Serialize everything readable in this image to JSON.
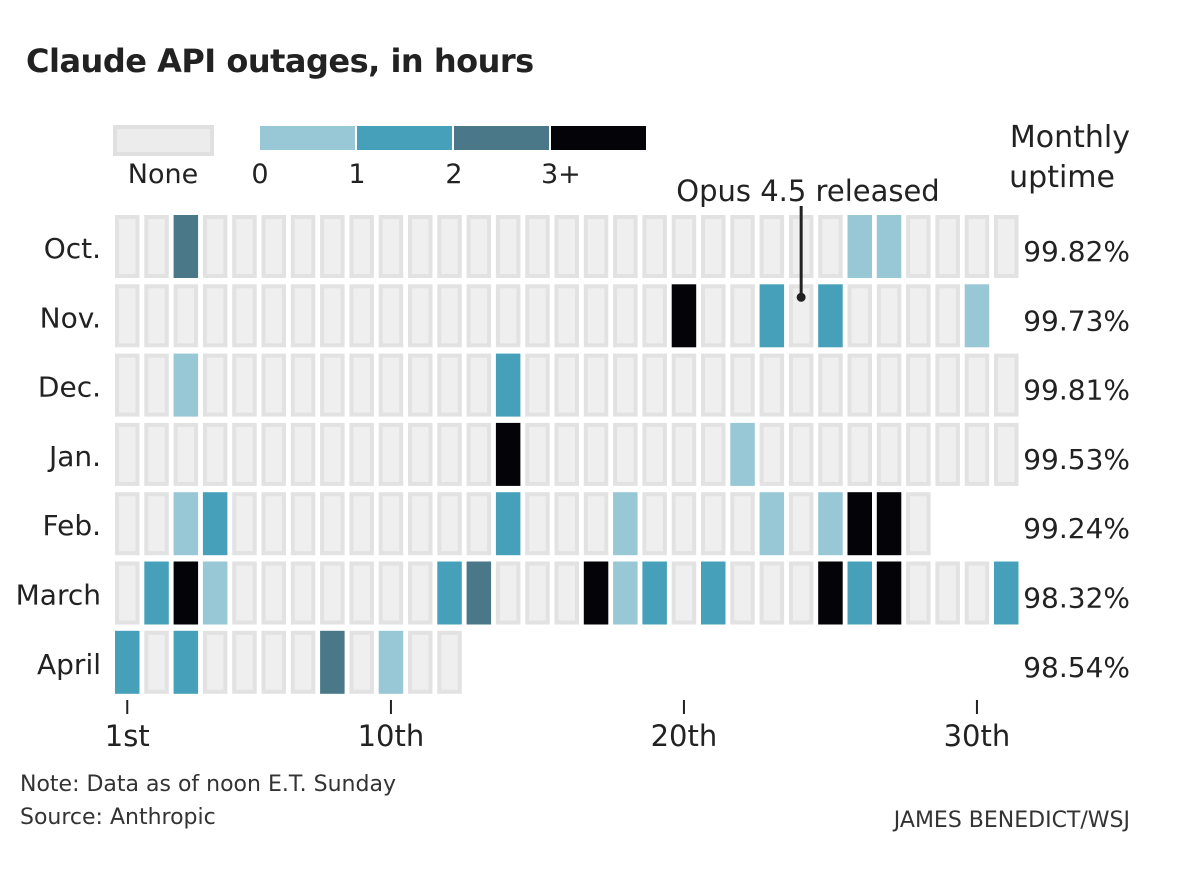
{
  "chart_data": {
    "type": "heatmap",
    "title": "Claude API outages, in hours",
    "legend": {
      "none_label": "None",
      "bins": [
        {
          "from": "0",
          "to": "1",
          "color": "#98c7d5"
        },
        {
          "from": "1",
          "to": "2",
          "color": "#46a0ba"
        },
        {
          "from": "2",
          "to": "3+",
          "color": "#4a7888"
        },
        {
          "from": "3+",
          "to": "",
          "color": "#030308"
        }
      ],
      "tick_labels": [
        "0",
        "1",
        "2",
        "3+"
      ],
      "none_color": "#ececec"
    },
    "uptime_header": [
      "Monthly",
      "uptime"
    ],
    "x_ticks": [
      {
        "day": 1,
        "label": "1st"
      },
      {
        "day": 10,
        "label": "10th"
      },
      {
        "day": 20,
        "label": "20th"
      },
      {
        "day": 30,
        "label": "30th"
      }
    ],
    "annotation": {
      "text": "Opus 4.5 released",
      "month": "Nov.",
      "day": 24
    },
    "rows": [
      {
        "month": "Oct.",
        "days": 31,
        "uptime": "99.82%",
        "outages": {
          "3": 2,
          "26": 0,
          "27": 0
        }
      },
      {
        "month": "Nov.",
        "days": 30,
        "uptime": "99.73%",
        "outages": {
          "20": 3,
          "23": 1,
          "25": 1,
          "30": 0
        }
      },
      {
        "month": "Dec.",
        "days": 31,
        "uptime": "99.81%",
        "outages": {
          "3": 0,
          "14": 1
        }
      },
      {
        "month": "Jan.",
        "days": 31,
        "uptime": "99.53%",
        "outages": {
          "14": 3,
          "22": 0
        }
      },
      {
        "month": "Feb.",
        "days": 28,
        "uptime": "99.24%",
        "outages": {
          "3": 0,
          "4": 1,
          "14": 1,
          "18": 0,
          "23": 0,
          "25": 0,
          "26": 3,
          "27": 3
        }
      },
      {
        "month": "March",
        "days": 31,
        "uptime": "98.32%",
        "outages": {
          "2": 1,
          "3": 3,
          "4": 0,
          "12": 1,
          "13": 2,
          "17": 3,
          "18": 0,
          "19": 1,
          "21": 1,
          "25": 3,
          "26": 1,
          "27": 3,
          "31": 1
        }
      },
      {
        "month": "April",
        "days": 12,
        "uptime": "98.54%",
        "outages": {
          "1": 1,
          "3": 1,
          "8": 2,
          "10": 0
        }
      }
    ]
  },
  "note": "Note: Data as of noon E.T. Sunday",
  "source": "Source: Anthropic",
  "credit": "JAMES BENEDICT/WSJ"
}
